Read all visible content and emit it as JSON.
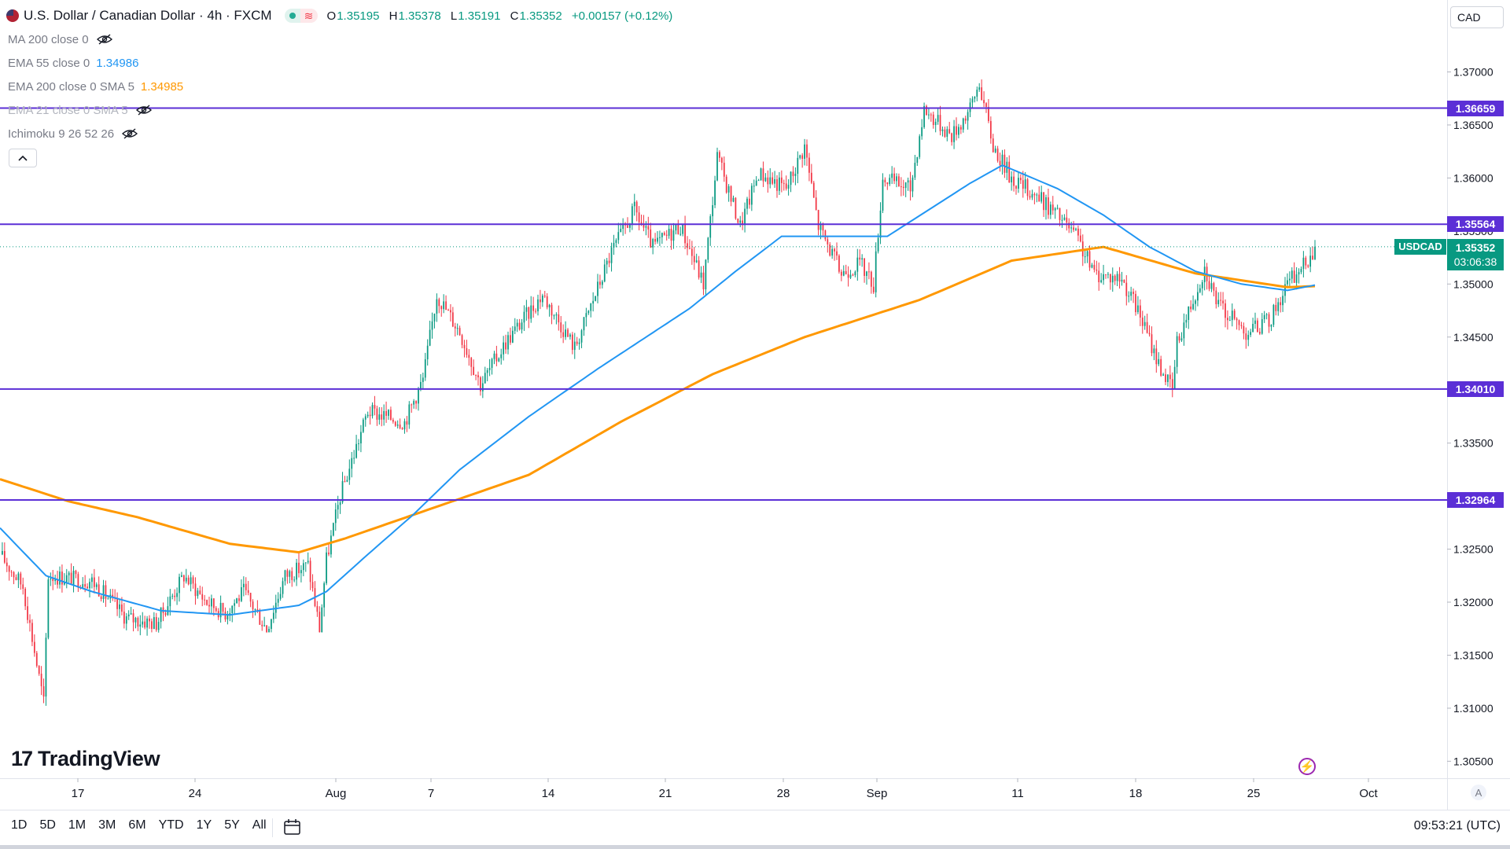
{
  "header": {
    "symbol_title": "U.S. Dollar / Canadian Dollar · 4h · FXCM",
    "badge_icon": "market-open-dot",
    "badge_icon2": "waves-icon",
    "ohlc": {
      "o_label": "O",
      "o": "1.35195",
      "h_label": "H",
      "h": "1.35378",
      "l_label": "L",
      "l": "1.35191",
      "c_label": "C",
      "c": "1.35352",
      "change": "+0.00157 (+0.12%)"
    }
  },
  "indicators": [
    {
      "label": "MA 200 close 0",
      "value": "",
      "hidden": true
    },
    {
      "label": "EMA 55 close 0",
      "value": "1.34986",
      "color": "#2196f3",
      "hidden": false
    },
    {
      "label": "EMA 200 close 0 SMA 5",
      "value": "1.34985",
      "color": "#ff9800",
      "hidden": false
    },
    {
      "label": "EMA 21 close 0 SMA 5",
      "value": "",
      "hidden": true
    },
    {
      "label": "Ichimoku 9 26 52 26",
      "value": "",
      "hidden": true
    }
  ],
  "currency_selector": "CAD",
  "price_axis": {
    "ticks": [
      "1.37000",
      "1.36500",
      "1.36000",
      "1.35500",
      "1.35000",
      "1.34500",
      "1.34000",
      "1.33500",
      "1.33000",
      "1.32500",
      "1.32000",
      "1.31500",
      "1.31000",
      "1.30500"
    ],
    "levels": [
      "1.36659",
      "1.35564",
      "1.34010",
      "1.32964"
    ],
    "level_color": "#5b2fd6",
    "last_price": "1.35352",
    "countdown": "03:06:38",
    "symbol_tag": "USDCAD"
  },
  "time_axis": {
    "labels": [
      "17",
      "24",
      "Aug",
      "7",
      "14",
      "21",
      "28",
      "Sep",
      "11",
      "18",
      "25",
      "Oct"
    ],
    "auto_label": "A"
  },
  "logo": {
    "mark": "17",
    "text": "TradingView"
  },
  "bottom_bar": {
    "ranges": [
      "1D",
      "5D",
      "1M",
      "3M",
      "6M",
      "YTD",
      "1Y",
      "5Y",
      "All"
    ],
    "clock": "09:53:21 (UTC)"
  },
  "chart_data": {
    "type": "candlestick",
    "symbol": "USDCAD",
    "interval": "4h",
    "ylim": [
      1.3035,
      1.3735
    ],
    "x_labels": [
      "17",
      "24",
      "Aug",
      "7",
      "14",
      "21",
      "28",
      "Sep",
      "11",
      "18",
      "25",
      "Oct"
    ],
    "horizontal_levels": [
      1.36659,
      1.35564,
      1.3401,
      1.32964
    ],
    "close_path": [
      [
        0,
        1.3245
      ],
      [
        10,
        1.3215
      ],
      [
        19,
        1.3105
      ],
      [
        21,
        1.3225
      ],
      [
        40,
        1.322
      ],
      [
        55,
        1.3185
      ],
      [
        68,
        1.318
      ],
      [
        80,
        1.3225
      ],
      [
        90,
        1.32
      ],
      [
        98,
        1.319
      ],
      [
        106,
        1.321
      ],
      [
        116,
        1.3175
      ],
      [
        124,
        1.3225
      ],
      [
        134,
        1.3235
      ],
      [
        139,
        1.3175
      ],
      [
        142,
        1.324
      ],
      [
        148,
        1.33
      ],
      [
        160,
        1.338
      ],
      [
        176,
        1.337
      ],
      [
        184,
        1.341
      ],
      [
        190,
        1.349
      ],
      [
        200,
        1.3455
      ],
      [
        209,
        1.3405
      ],
      [
        220,
        1.3445
      ],
      [
        236,
        1.349
      ],
      [
        250,
        1.344
      ],
      [
        266,
        1.353
      ],
      [
        276,
        1.357
      ],
      [
        284,
        1.3535
      ],
      [
        296,
        1.3555
      ],
      [
        306,
        1.35
      ],
      [
        312,
        1.362
      ],
      [
        322,
        1.3555
      ],
      [
        330,
        1.3605
      ],
      [
        342,
        1.359
      ],
      [
        350,
        1.363
      ],
      [
        356,
        1.3555
      ],
      [
        366,
        1.351
      ],
      [
        374,
        1.352
      ],
      [
        380,
        1.35
      ],
      [
        384,
        1.36
      ],
      [
        396,
        1.359
      ],
      [
        402,
        1.3665
      ],
      [
        414,
        1.364
      ],
      [
        422,
        1.3665
      ],
      [
        426,
        1.369
      ],
      [
        432,
        1.363
      ],
      [
        440,
        1.36
      ],
      [
        450,
        1.3585
      ],
      [
        460,
        1.3565
      ],
      [
        468,
        1.3545
      ],
      [
        476,
        1.351
      ],
      [
        488,
        1.3505
      ],
      [
        496,
        1.347
      ],
      [
        504,
        1.3425
      ],
      [
        510,
        1.34
      ],
      [
        512,
        1.3445
      ],
      [
        524,
        1.3515
      ],
      [
        530,
        1.348
      ],
      [
        542,
        1.3455
      ],
      [
        552,
        1.3465
      ],
      [
        560,
        1.35
      ],
      [
        568,
        1.352
      ],
      [
        572,
        1.3535
      ]
    ],
    "ema55": [
      [
        0,
        1.327
      ],
      [
        20,
        1.3225
      ],
      [
        40,
        1.321
      ],
      [
        70,
        1.3192
      ],
      [
        100,
        1.3188
      ],
      [
        130,
        1.3197
      ],
      [
        142,
        1.321
      ],
      [
        160,
        1.3245
      ],
      [
        180,
        1.3283
      ],
      [
        200,
        1.3325
      ],
      [
        230,
        1.3375
      ],
      [
        260,
        1.342
      ],
      [
        300,
        1.3477
      ],
      [
        320,
        1.3512
      ],
      [
        340,
        1.3545
      ],
      [
        370,
        1.3545
      ],
      [
        386,
        1.3545
      ],
      [
        404,
        1.357
      ],
      [
        422,
        1.3595
      ],
      [
        436,
        1.3612
      ],
      [
        460,
        1.359
      ],
      [
        480,
        1.3565
      ],
      [
        500,
        1.3535
      ],
      [
        520,
        1.3512
      ],
      [
        540,
        1.35
      ],
      [
        560,
        1.3494
      ],
      [
        572,
        1.3499
      ]
    ],
    "ema200": [
      [
        0,
        1.3316
      ],
      [
        30,
        1.3295
      ],
      [
        60,
        1.328
      ],
      [
        100,
        1.3255
      ],
      [
        130,
        1.3247
      ],
      [
        150,
        1.326
      ],
      [
        190,
        1.329
      ],
      [
        230,
        1.332
      ],
      [
        270,
        1.337
      ],
      [
        310,
        1.3415
      ],
      [
        350,
        1.345
      ],
      [
        400,
        1.3485
      ],
      [
        440,
        1.3522
      ],
      [
        480,
        1.3535
      ],
      [
        520,
        1.351
      ],
      [
        560,
        1.3497
      ],
      [
        572,
        1.3498
      ]
    ]
  }
}
